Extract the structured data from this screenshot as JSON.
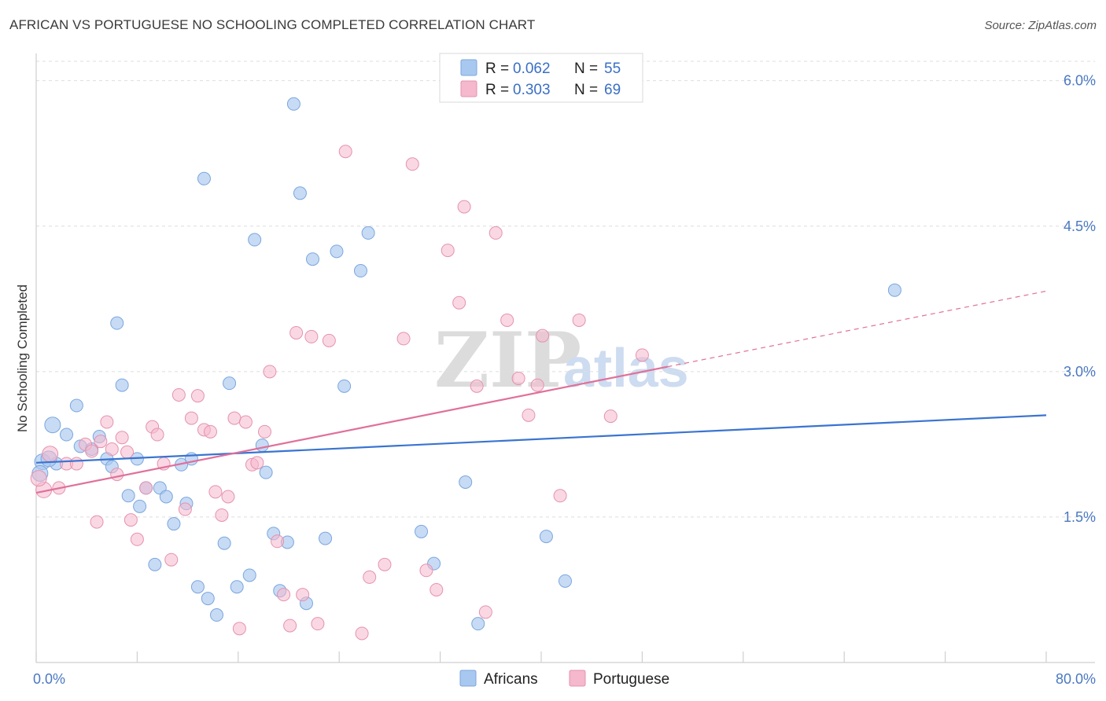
{
  "header": {
    "title": "AFRICAN VS PORTUGUESE NO SCHOOLING COMPLETED CORRELATION CHART",
    "source": "Source: ZipAtlas.com"
  },
  "watermark": {
    "zip": "ZIP",
    "atlas": "atlas"
  },
  "legend": {
    "rows": [
      {
        "r_label": "R =",
        "r_value": "0.062",
        "n_label": "N =",
        "n_value": "55",
        "color": "#a9c8f0"
      },
      {
        "r_label": "R =",
        "r_value": "0.303",
        "n_label": "N =",
        "n_value": "69",
        "color": "#f5b8cc"
      }
    ]
  },
  "bottom_legend": {
    "items": [
      {
        "label": "Africans",
        "color": "#a9c8f0"
      },
      {
        "label": "Portuguese",
        "color": "#f5b8cc"
      }
    ]
  },
  "chart_data": {
    "type": "scatter",
    "title": "AFRICAN VS PORTUGUESE NO SCHOOLING COMPLETED CORRELATION CHART",
    "xlabel": "",
    "ylabel": "No Schooling Completed",
    "xlim": [
      0,
      80
    ],
    "ylim": [
      0,
      6.2
    ],
    "x_tick_labels": [
      "0.0%",
      "80.0%"
    ],
    "y_ticks": [
      1.5,
      3.0,
      4.5,
      6.0
    ],
    "y_tick_labels": [
      "1.5%",
      "3.0%",
      "4.5%",
      "6.0%"
    ],
    "grid": true,
    "legend_position": "top-center",
    "colors": {
      "africans": "#a9c8f0",
      "africans_line": "#3a74d0",
      "portuguese": "#f5b8cc",
      "portuguese_line": "#e0709a"
    },
    "series": [
      {
        "name": "Africans",
        "R": 0.062,
        "N": 55,
        "trend": {
          "x": [
            0,
            80
          ],
          "y": [
            2.06,
            2.55
          ]
        },
        "points": [
          [
            1.3,
            2.45
          ],
          [
            1.6,
            2.05
          ],
          [
            2.4,
            2.35
          ],
          [
            3.2,
            2.65
          ],
          [
            3.5,
            2.23
          ],
          [
            4.4,
            2.2
          ],
          [
            5.0,
            2.33
          ],
          [
            5.6,
            2.1
          ],
          [
            6.0,
            2.02
          ],
          [
            6.4,
            3.5
          ],
          [
            6.8,
            2.86
          ],
          [
            7.3,
            1.72
          ],
          [
            8.0,
            2.1
          ],
          [
            8.2,
            1.61
          ],
          [
            8.7,
            1.8
          ],
          [
            9.4,
            1.01
          ],
          [
            9.8,
            1.8
          ],
          [
            10.3,
            1.71
          ],
          [
            10.9,
            1.43
          ],
          [
            11.5,
            2.04
          ],
          [
            11.9,
            1.64
          ],
          [
            12.3,
            2.1
          ],
          [
            12.8,
            0.78
          ],
          [
            13.3,
            4.99
          ],
          [
            13.6,
            0.66
          ],
          [
            14.3,
            0.49
          ],
          [
            14.9,
            1.23
          ],
          [
            15.3,
            2.88
          ],
          [
            15.9,
            0.78
          ],
          [
            16.9,
            0.9
          ],
          [
            17.3,
            4.36
          ],
          [
            17.9,
            2.24
          ],
          [
            18.2,
            1.96
          ],
          [
            18.8,
            1.33
          ],
          [
            19.3,
            0.74
          ],
          [
            19.9,
            1.24
          ],
          [
            20.4,
            5.76
          ],
          [
            20.9,
            4.84
          ],
          [
            21.4,
            0.61
          ],
          [
            21.9,
            4.16
          ],
          [
            22.9,
            1.28
          ],
          [
            23.8,
            4.24
          ],
          [
            24.4,
            2.85
          ],
          [
            25.7,
            4.04
          ],
          [
            26.3,
            4.43
          ],
          [
            30.5,
            1.35
          ],
          [
            31.5,
            1.02
          ],
          [
            34.0,
            1.86
          ],
          [
            35.0,
            0.4
          ],
          [
            40.4,
            1.3
          ],
          [
            41.9,
            0.84
          ],
          [
            68.0,
            3.84
          ],
          [
            0.5,
            2.07
          ],
          [
            1.0,
            2.1
          ],
          [
            0.3,
            1.95
          ]
        ]
      },
      {
        "name": "Portuguese",
        "R": 0.303,
        "N": 69,
        "trend": {
          "x": [
            0,
            50
          ],
          "y": [
            1.75,
            3.05
          ]
        },
        "trend_dashed": {
          "x": [
            50,
            80
          ],
          "y": [
            3.05,
            3.83
          ]
        },
        "points": [
          [
            0.6,
            1.78
          ],
          [
            1.1,
            2.15
          ],
          [
            1.8,
            1.8
          ],
          [
            2.4,
            2.05
          ],
          [
            3.2,
            2.05
          ],
          [
            3.9,
            2.25
          ],
          [
            4.4,
            2.18
          ],
          [
            4.8,
            1.45
          ],
          [
            5.1,
            2.28
          ],
          [
            5.6,
            2.48
          ],
          [
            6.0,
            2.2
          ],
          [
            6.4,
            1.94
          ],
          [
            6.8,
            2.32
          ],
          [
            7.2,
            2.17
          ],
          [
            7.5,
            1.47
          ],
          [
            8.0,
            1.27
          ],
          [
            8.7,
            1.8
          ],
          [
            9.2,
            2.43
          ],
          [
            9.6,
            2.35
          ],
          [
            10.1,
            2.05
          ],
          [
            10.7,
            1.06
          ],
          [
            11.3,
            2.76
          ],
          [
            11.8,
            1.58
          ],
          [
            12.3,
            2.52
          ],
          [
            12.8,
            2.75
          ],
          [
            13.3,
            2.4
          ],
          [
            13.8,
            2.38
          ],
          [
            14.2,
            1.76
          ],
          [
            14.7,
            1.52
          ],
          [
            15.2,
            1.71
          ],
          [
            15.7,
            2.52
          ],
          [
            16.1,
            0.35
          ],
          [
            16.6,
            2.48
          ],
          [
            17.1,
            2.04
          ],
          [
            17.5,
            2.06
          ],
          [
            18.1,
            2.38
          ],
          [
            18.5,
            3.0
          ],
          [
            19.1,
            1.25
          ],
          [
            19.6,
            0.7
          ],
          [
            20.1,
            0.38
          ],
          [
            20.6,
            3.4
          ],
          [
            21.1,
            0.7
          ],
          [
            21.8,
            3.36
          ],
          [
            22.3,
            0.4
          ],
          [
            23.2,
            3.32
          ],
          [
            24.5,
            5.27
          ],
          [
            25.8,
            0.3
          ],
          [
            26.4,
            0.88
          ],
          [
            27.6,
            1.01
          ],
          [
            29.1,
            3.34
          ],
          [
            29.8,
            5.14
          ],
          [
            30.9,
            0.95
          ],
          [
            31.7,
            0.75
          ],
          [
            32.6,
            4.25
          ],
          [
            33.5,
            3.71
          ],
          [
            33.9,
            4.7
          ],
          [
            34.9,
            2.85
          ],
          [
            35.6,
            0.52
          ],
          [
            36.4,
            4.43
          ],
          [
            37.3,
            3.53
          ],
          [
            38.2,
            2.93
          ],
          [
            39.0,
            2.55
          ],
          [
            39.7,
            2.86
          ],
          [
            40.1,
            3.37
          ],
          [
            41.5,
            1.72
          ],
          [
            43.0,
            3.53
          ],
          [
            45.5,
            2.54
          ],
          [
            48.0,
            3.17
          ],
          [
            0.2,
            1.9
          ]
        ]
      }
    ]
  }
}
